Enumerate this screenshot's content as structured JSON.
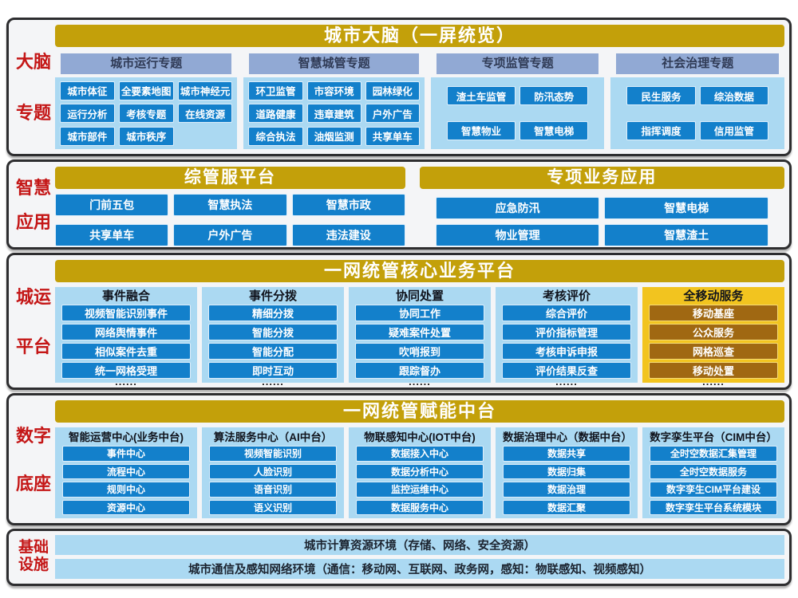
{
  "colors": {
    "gold": "#c3a00a",
    "item_blue": "#1380cb",
    "panel_light_blue": "#abd9f2",
    "header_steel_blue": "#91a9d4",
    "mobile_amber": "#f2c41f",
    "mobile_brown": "#a06812",
    "label_red": "#c41616",
    "panel_bg": "#f4f5f7",
    "border_dark": "#2d2d2f",
    "text_dark": "#10131c",
    "btn_border": "#ddeefb",
    "header_text": "#2f3a55"
  },
  "panels": [
    {
      "label_lines": [
        "大脑",
        "专题"
      ],
      "title": "城市大脑（一屏统览）",
      "groups": [
        {
          "header": "城市运行专题",
          "items": [
            "城市体征",
            "全要素地图",
            "城市神经元",
            "运行分析",
            "考核专题",
            "在线资源",
            "城市部件",
            "城市秩序"
          ]
        },
        {
          "header": "智慧城管专题",
          "items": [
            "环卫监管",
            "市容环境",
            "园林绿化",
            "道路健康",
            "违章建筑",
            "户外广告",
            "综合执法",
            "油烟监测",
            "共享单车"
          ]
        },
        {
          "header": "专项监管专题",
          "items": [
            "渣土车监管",
            "防汛态势",
            "智慧物业",
            "智慧电梯"
          ]
        },
        {
          "header": "社会治理专题",
          "items": [
            "民生服务",
            "综治数据",
            "指挥调度",
            "信用监管"
          ]
        }
      ]
    },
    {
      "label_lines": [
        "智慧",
        "应用"
      ],
      "sections": [
        {
          "title": "综管服平台",
          "items": [
            "门前五包",
            "智慧执法",
            "智慧市政",
            "共享单车",
            "户外广告",
            "违法建设"
          ]
        },
        {
          "title": "专项业务应用",
          "items": [
            "应急防汛",
            "智慧电梯",
            "物业管理",
            "智慧渣土"
          ]
        }
      ]
    },
    {
      "label_lines": [
        "城运",
        "平台"
      ],
      "title": "一网统管核心业务平台",
      "dots": "......",
      "columns": [
        {
          "header": "事件融合",
          "items": [
            "视频智能识别事件",
            "网络舆情事件",
            "相似案件去重",
            "统一网格受理"
          ]
        },
        {
          "header": "事件分拨",
          "items": [
            "精细分拨",
            "智能分拨",
            "智能分配",
            "即时互动"
          ]
        },
        {
          "header": "协同处置",
          "items": [
            "协同工作",
            "疑难案件处置",
            "吹哨报到",
            "跟踪督办"
          ]
        },
        {
          "header": "考核评价",
          "items": [
            "综合评价",
            "评价指标管理",
            "考核申诉申报",
            "评价结果反查"
          ]
        },
        {
          "header": "全移动服务",
          "items": [
            "移动基座",
            "公众服务",
            "网格巡查",
            "移动处置"
          ]
        }
      ]
    },
    {
      "label_lines": [
        "数字",
        "底座"
      ],
      "title": "一网统管赋能中台",
      "columns": [
        {
          "header": "智能运营中心(业务中台)",
          "items": [
            "事件中心",
            "流程中心",
            "规则中心",
            "资源中心"
          ]
        },
        {
          "header": "算法服务中心（AI中台）",
          "items": [
            "视频智能识别",
            "人脸识别",
            "语音识别",
            "语义识别"
          ]
        },
        {
          "header": "物联感知中心(IOT中台)",
          "items": [
            "数据接入中心",
            "数据分析中心",
            "监控运维中心",
            "数据服务中心"
          ]
        },
        {
          "header": "数据治理中心（数据中台）",
          "items": [
            "数据共享",
            "数据归集",
            "数据治理",
            "数据汇聚"
          ]
        },
        {
          "header": "数字孪生平台（CIM中台）",
          "items": [
            "全时空数据汇集管理",
            "全时空数据服务",
            "数字孪生CIM平台建设",
            "数字孪生平台系统模块"
          ]
        }
      ]
    },
    {
      "label_lines": [
        "基础",
        "设施"
      ],
      "bars": [
        "城市计算资源环境（存储、网络、安全资源）",
        "城市通信及感知网络环境（通信：移动网、互联网、政务网，感知：物联感知、视频感知）"
      ]
    }
  ]
}
